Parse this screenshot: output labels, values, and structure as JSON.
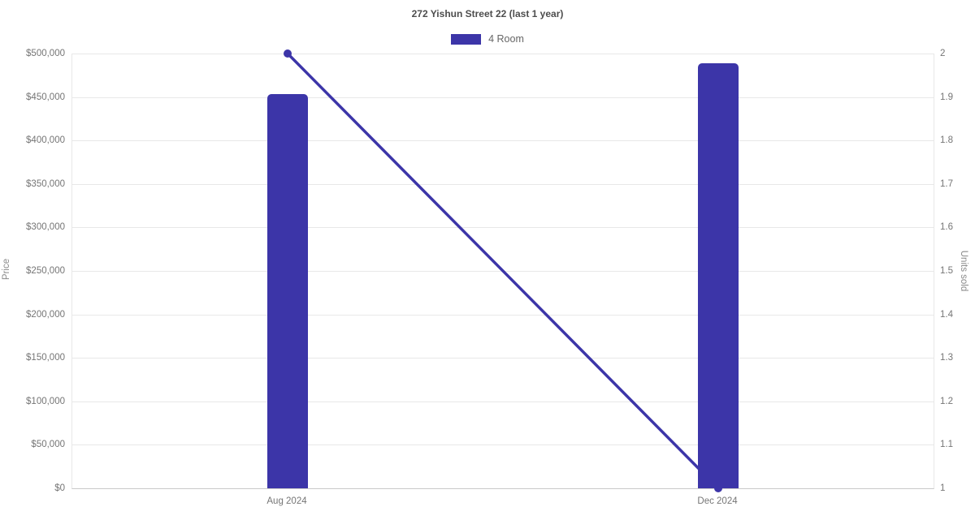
{
  "chart_data": {
    "type": "combo-bar-line",
    "title": "272 Yishun Street 22 (last 1 year)",
    "categories": [
      "Aug 2024",
      "Dec 2024"
    ],
    "series": [
      {
        "name": "4 Room",
        "type": "bar",
        "axis": "left",
        "label_context": "Price",
        "values": [
          453000,
          489000
        ]
      },
      {
        "name": "4 Room",
        "type": "line",
        "axis": "right",
        "label_context": "Units sold",
        "values": [
          2,
          1
        ]
      }
    ],
    "left_axis": {
      "label": "Price",
      "min": 0,
      "max": 500000,
      "step": 50000,
      "tick_labels_top_to_bottom": [
        "$500,000",
        "$450,000",
        "$400,000",
        "$350,000",
        "$300,000",
        "$250,000",
        "$200,000",
        "$150,000",
        "$100,000",
        "$50,000",
        "$0"
      ]
    },
    "right_axis": {
      "label": "Units sold",
      "min": 1,
      "max": 2,
      "step": 0.1,
      "tick_labels_top_to_bottom": [
        "2",
        "1.9",
        "1.8",
        "1.7",
        "1.6",
        "1.5",
        "1.4",
        "1.3",
        "1.2",
        "1.1",
        "1"
      ]
    },
    "legend": {
      "position": "top",
      "items": [
        {
          "label": "4 Room",
          "color": "#3c35a8"
        }
      ]
    },
    "grid": true
  },
  "colors": {
    "background": "#ffffff",
    "accent": "#3c35a8",
    "grid_line": "#e8e8e8",
    "axis_line": "#c9c9c9",
    "tick_text": "#757575",
    "title_text": "#4d4d4d",
    "axis_title_text": "#8a8a8a",
    "legend_text": "#666666"
  }
}
